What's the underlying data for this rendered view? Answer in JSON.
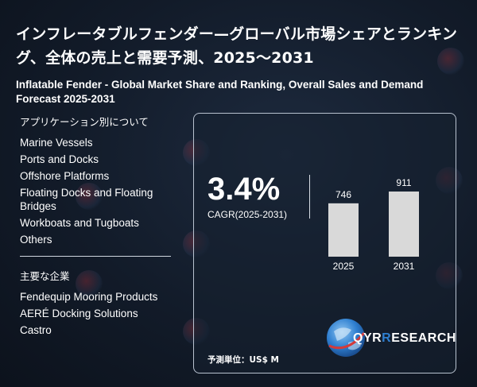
{
  "header": {
    "title_jp": "インフレータブルフェンダー—グローバル市場シェアとランキング、全体の売上と需要予測、2025～2031",
    "title_en": "Inflatable Fender - Global Market Share and Ranking, Overall Sales and Demand Forecast 2025-2031"
  },
  "applications": {
    "heading": "アプリケーション別について",
    "items": [
      "Marine Vessels",
      "Ports and Docks",
      "Offshore Platforms",
      "Floating Docks and Floating Bridges",
      "Workboats and Tugboats",
      "Others"
    ]
  },
  "companies": {
    "heading": "主要な企業",
    "items": [
      "Fendequip Mooring Products",
      "AERÉ Docking Solutions",
      "Castro"
    ]
  },
  "cagr": {
    "value": "3.4%",
    "label": "CAGR(2025-2031)"
  },
  "unit_label": "予測単位：US$ M",
  "logo": {
    "text_a": "QYR",
    "text_b": "ESEARCH"
  },
  "colors": {
    "bar": "#d9d9d9",
    "background": "#141d2b",
    "logo_blue": "#2f7fd0"
  },
  "chart_data": {
    "type": "bar",
    "categories": [
      "2025",
      "2031"
    ],
    "values": [
      746,
      911
    ],
    "data_labels": [
      "746",
      "911"
    ],
    "ylim": [
      0,
      1000
    ]
  }
}
